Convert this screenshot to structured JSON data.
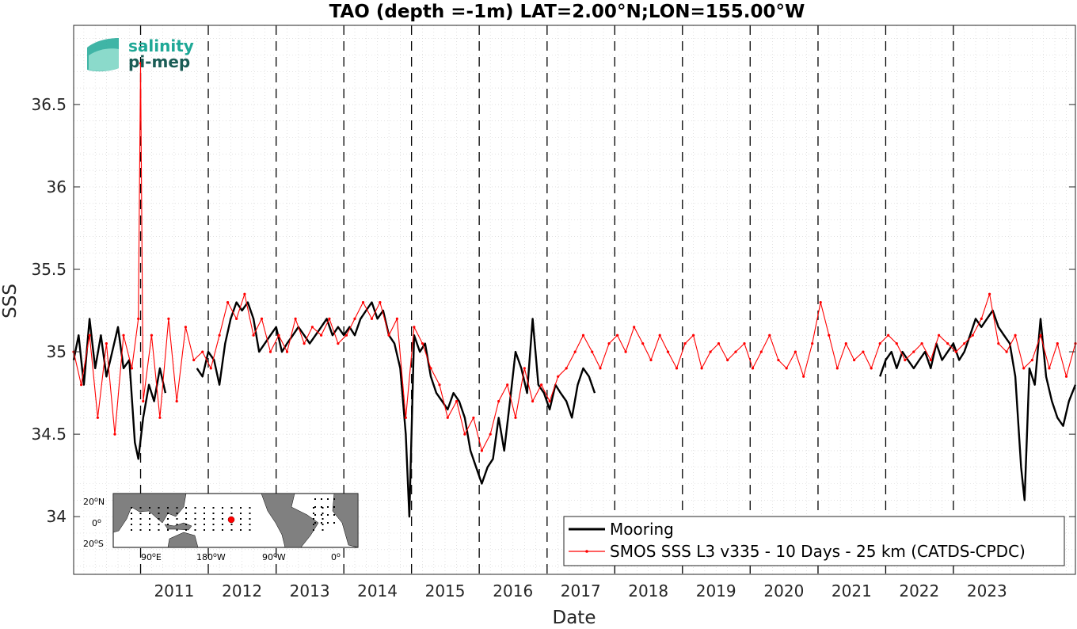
{
  "chart_data": {
    "type": "line",
    "title": "TAO (depth =-1m) LAT=2.00°N;LON=155.00°W",
    "xlabel": "Date",
    "ylabel": "SSS",
    "x_range": [
      "2010-01-05",
      "2024-10-20"
    ],
    "ylim": [
      33.65,
      36.98
    ],
    "x_ticks": [
      "2011",
      "2012",
      "2013",
      "2014",
      "2015",
      "2016",
      "2017",
      "2018",
      "2019",
      "2020",
      "2021",
      "2022",
      "2023"
    ],
    "y_ticks": [
      34,
      34.5,
      35,
      35.5,
      36,
      36.5
    ],
    "y_tick_labels": [
      "34",
      "34.5",
      "35",
      "35.5",
      "36",
      "36.5"
    ],
    "grid": "on (minor dotted)",
    "year_boundaries": "dashed vertical lines at each January 1",
    "legend_position": "bottom-right",
    "series": [
      {
        "name": "Mooring",
        "color": "#000000",
        "segments": [
          {
            "x": [
              "2010-01-05",
              "2010-02-01",
              "2010-03-01",
              "2010-04-01",
              "2010-05-01",
              "2010-06-01",
              "2010-07-01",
              "2010-08-01",
              "2010-09-01",
              "2010-10-01",
              "2010-11-01",
              "2010-12-01",
              "2010-12-20",
              "2011-01-15",
              "2011-02-15",
              "2011-03-15",
              "2011-04-15",
              "2011-05-15"
            ],
            "y": [
              34.95,
              35.1,
              34.8,
              35.2,
              34.9,
              35.1,
              34.85,
              35.0,
              35.15,
              34.9,
              34.95,
              34.45,
              34.35,
              34.6,
              34.8,
              34.7,
              34.9,
              34.75
            ]
          },
          {
            "x": [
              "2011-11-01",
              "2011-12-01",
              "2012-01-01",
              "2012-02-01",
              "2012-03-01",
              "2012-04-01",
              "2012-05-01",
              "2012-06-01",
              "2012-07-01",
              "2012-08-01",
              "2012-09-01",
              "2012-10-01",
              "2012-11-01",
              "2012-12-01",
              "2013-01-01",
              "2013-02-01",
              "2013-03-01",
              "2013-04-01",
              "2013-05-01",
              "2013-06-01",
              "2013-07-01",
              "2013-08-01",
              "2013-09-01",
              "2013-10-01",
              "2013-11-01",
              "2013-12-01",
              "2014-01-01",
              "2014-02-01",
              "2014-03-01",
              "2014-04-01",
              "2014-05-01",
              "2014-06-01",
              "2014-07-01",
              "2014-08-01",
              "2014-09-01",
              "2014-10-01",
              "2014-11-01",
              "2014-12-01",
              "2014-12-20",
              "2015-01-15",
              "2015-02-15",
              "2015-03-15",
              "2015-04-15",
              "2015-05-15",
              "2015-06-15",
              "2015-07-15",
              "2015-08-15",
              "2015-09-15",
              "2015-10-15",
              "2015-11-15",
              "2015-12-15",
              "2016-01-15",
              "2016-02-15",
              "2016-03-15",
              "2016-04-15",
              "2016-05-15",
              "2016-06-15",
              "2016-07-15",
              "2016-08-15",
              "2016-09-15",
              "2016-10-15",
              "2016-11-15",
              "2016-12-15",
              "2017-01-15",
              "2017-02-15",
              "2017-03-15",
              "2017-04-15",
              "2017-05-15",
              "2017-06-15",
              "2017-07-15",
              "2017-08-15",
              "2017-09-15"
            ],
            "y": [
              34.9,
              34.85,
              35.0,
              34.95,
              34.8,
              35.05,
              35.2,
              35.3,
              35.25,
              35.3,
              35.2,
              35.0,
              35.05,
              35.1,
              35.15,
              35.0,
              35.05,
              35.1,
              35.15,
              35.1,
              35.05,
              35.1,
              35.15,
              35.2,
              35.1,
              35.15,
              35.1,
              35.15,
              35.1,
              35.2,
              35.25,
              35.3,
              35.2,
              35.25,
              35.1,
              35.05,
              34.9,
              34.5,
              34.0,
              35.1,
              35.0,
              35.05,
              34.85,
              34.75,
              34.7,
              34.65,
              34.75,
              34.7,
              34.6,
              34.4,
              34.3,
              34.2,
              34.3,
              34.35,
              34.6,
              34.4,
              34.7,
              35.0,
              34.9,
              34.75,
              35.2,
              34.8,
              34.75,
              34.65,
              34.8,
              34.75,
              34.7,
              34.6,
              34.8,
              34.9,
              34.85,
              34.75
            ]
          },
          {
            "x": [
              "2021-12-01",
              "2022-01-01",
              "2022-02-01",
              "2022-03-01",
              "2022-04-01",
              "2022-05-01",
              "2022-06-01",
              "2022-07-01",
              "2022-08-01",
              "2022-09-01",
              "2022-10-01",
              "2022-11-01",
              "2022-12-01",
              "2023-01-01",
              "2023-02-01",
              "2023-03-01",
              "2023-04-01",
              "2023-05-01",
              "2023-06-01",
              "2023-07-01",
              "2023-08-01",
              "2023-09-01",
              "2023-10-01",
              "2023-11-01",
              "2023-12-01",
              "2024-01-01",
              "2024-01-20",
              "2024-02-15",
              "2024-03-15",
              "2024-04-15",
              "2024-05-15",
              "2024-06-15",
              "2024-07-15",
              "2024-08-15",
              "2024-09-15",
              "2024-10-20"
            ],
            "y": [
              34.85,
              34.95,
              35.0,
              34.9,
              35.0,
              34.95,
              34.9,
              34.95,
              35.0,
              34.9,
              35.05,
              34.95,
              35.0,
              35.05,
              34.95,
              35.0,
              35.1,
              35.2,
              35.15,
              35.2,
              35.25,
              35.15,
              35.1,
              35.05,
              34.85,
              34.3,
              34.1,
              34.9,
              34.8,
              35.2,
              34.85,
              34.7,
              34.6,
              34.55,
              34.7,
              34.8
            ]
          }
        ]
      },
      {
        "name": "SMOS SSS L3 v335 - 10 Days - 25 km (CATDS-CPDC)",
        "color": "#ff0000",
        "segments": [
          {
            "x": [
              "2010-01-05",
              "2010-02-15",
              "2010-04-01",
              "2010-05-15",
              "2010-07-01",
              "2010-08-15",
              "2010-10-01",
              "2010-11-15",
              "2010-12-20",
              "2011-01-01",
              "2011-01-15",
              "2011-03-01",
              "2011-04-15",
              "2011-06-01",
              "2011-07-15",
              "2011-09-01",
              "2011-10-15",
              "2011-12-01",
              "2012-01-15",
              "2012-03-01",
              "2012-04-15",
              "2012-06-01",
              "2012-07-15",
              "2012-09-01",
              "2012-10-15",
              "2012-12-01",
              "2013-01-15",
              "2013-03-01",
              "2013-04-15",
              "2013-06-01",
              "2013-07-15",
              "2013-09-01",
              "2013-10-15",
              "2013-12-01",
              "2014-01-15",
              "2014-03-01",
              "2014-04-15",
              "2014-06-01",
              "2014-07-15",
              "2014-09-01",
              "2014-10-15",
              "2014-12-01",
              "2015-01-15",
              "2015-03-01",
              "2015-04-15",
              "2015-06-01",
              "2015-07-15",
              "2015-09-01",
              "2015-10-15",
              "2015-12-01",
              "2016-01-15",
              "2016-03-01",
              "2016-04-15",
              "2016-06-01",
              "2016-07-15",
              "2016-09-01",
              "2016-10-15",
              "2016-12-01",
              "2017-01-15",
              "2017-03-01",
              "2017-04-15",
              "2017-06-01",
              "2017-07-15",
              "2017-09-01",
              "2017-10-15",
              "2017-12-01",
              "2018-01-15",
              "2018-03-01",
              "2018-04-15",
              "2018-06-01",
              "2018-07-15",
              "2018-09-01",
              "2018-10-15",
              "2018-12-01",
              "2019-01-15",
              "2019-03-01",
              "2019-04-15",
              "2019-06-01",
              "2019-07-15",
              "2019-09-01",
              "2019-10-15",
              "2019-12-01",
              "2020-01-15",
              "2020-03-01",
              "2020-04-15",
              "2020-06-01",
              "2020-07-15",
              "2020-09-01",
              "2020-10-15",
              "2020-12-01",
              "2021-01-15",
              "2021-03-01",
              "2021-04-15",
              "2021-06-01",
              "2021-07-15",
              "2021-09-01",
              "2021-10-15",
              "2021-12-01",
              "2022-01-15",
              "2022-03-01",
              "2022-04-15",
              "2022-06-01",
              "2022-07-15",
              "2022-09-01",
              "2022-10-15",
              "2022-12-01",
              "2023-01-15",
              "2023-03-01",
              "2023-04-15",
              "2023-06-01",
              "2023-07-15",
              "2023-09-01",
              "2023-10-15",
              "2023-12-01",
              "2024-01-15",
              "2024-03-01",
              "2024-04-15",
              "2024-06-01",
              "2024-07-15",
              "2024-09-01",
              "2024-10-20"
            ],
            "y": [
              35.0,
              34.8,
              35.1,
              34.6,
              35.05,
              34.5,
              35.1,
              34.9,
              35.2,
              36.75,
              34.7,
              35.1,
              34.6,
              35.2,
              34.7,
              35.15,
              34.95,
              35.0,
              34.9,
              35.1,
              35.3,
              35.2,
              35.35,
              35.1,
              35.2,
              35.0,
              35.1,
              35.0,
              35.2,
              35.05,
              35.15,
              35.1,
              35.2,
              35.05,
              35.1,
              35.2,
              35.3,
              35.2,
              35.3,
              35.1,
              35.2,
              34.6,
              35.15,
              35.05,
              34.9,
              34.8,
              34.6,
              34.7,
              34.5,
              34.6,
              34.4,
              34.5,
              34.7,
              34.8,
              34.6,
              34.9,
              34.7,
              34.8,
              34.7,
              34.85,
              34.9,
              35.0,
              35.1,
              35.0,
              34.9,
              35.05,
              35.1,
              35.0,
              35.15,
              35.05,
              34.95,
              35.1,
              35.0,
              34.9,
              35.05,
              35.1,
              34.9,
              35.0,
              35.05,
              34.95,
              35.0,
              35.05,
              34.9,
              35.0,
              35.1,
              34.95,
              34.9,
              35.0,
              34.85,
              35.05,
              35.3,
              35.1,
              34.9,
              35.05,
              34.95,
              35.0,
              34.9,
              35.05,
              35.1,
              35.05,
              34.95,
              35.0,
              35.05,
              34.95,
              35.1,
              35.05,
              35.0,
              35.05,
              35.1,
              35.2,
              35.35,
              35.05,
              35.0,
              35.1,
              34.9,
              34.95,
              35.1,
              34.9,
              35.05,
              34.85,
              35.05
            ]
          }
        ]
      }
    ],
    "legend": [
      "Mooring",
      "SMOS SSS L3 v335 - 10 Days - 25 km (CATDS-CPDC)"
    ]
  },
  "logo": {
    "line1": "salinity",
    "line2": "pi-mep"
  },
  "inset_map": {
    "lat_labels": [
      "20",
      "0",
      "20"
    ],
    "lat_suffixes": [
      "N",
      "",
      "S"
    ],
    "lon_labels": [
      "90",
      "180",
      "90",
      "0"
    ],
    "lon_suffixes": [
      "E",
      "W",
      "W",
      ""
    ],
    "degree_mark": "o",
    "highlight_color": "#ff0000",
    "land_color": "#808080"
  }
}
